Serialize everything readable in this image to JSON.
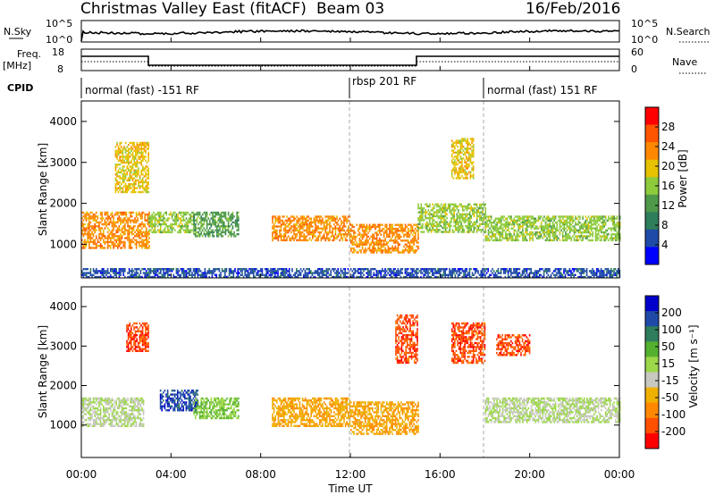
{
  "header": {
    "title": "Christmas Valley East (fitACF)",
    "beam": "Beam 03",
    "date": "16/Feb/2016"
  },
  "summary_panel": {
    "nsky_label": "N.Sky",
    "nsearch_label": "N.Search",
    "nsky_ticks": [
      "10^5",
      "10^0"
    ],
    "nsearch_ticks": [
      "10^5",
      "10^0"
    ],
    "freq_label_1": "Freq.",
    "freq_label_2": "[MHz]",
    "freq_ticks": [
      "18",
      "8"
    ],
    "nave_label": "Nave",
    "nave_ticks": [
      "60",
      "0"
    ],
    "cpid_label": "CPID"
  },
  "cpid_segments": [
    {
      "label": "normal (fast) -151 RF",
      "start_hour": 0,
      "end_hour": 12
    },
    {
      "label": "rbsp 201 RF",
      "start_hour": 12,
      "end_hour": 18
    },
    {
      "label": "normal (fast) 151 RF",
      "start_hour": 18,
      "end_hour": 24
    }
  ],
  "power_panel": {
    "ylabel": "Slant Range [km]",
    "yticks": [
      "1000",
      "2000",
      "3000",
      "4000"
    ],
    "colorbar_label": "Power [dB]",
    "colorbar_ticks": [
      "4",
      "8",
      "12",
      "16",
      "20",
      "24",
      "28"
    ],
    "colors": [
      "#0000ff",
      "#1f4aa8",
      "#2e7d5b",
      "#4f9a4a",
      "#8ecb3c",
      "#e6c200",
      "#ff8800",
      "#ff5500",
      "#ff0000"
    ]
  },
  "velocity_panel": {
    "ylabel": "Slant Range [km]",
    "yticks": [
      "1000",
      "2000",
      "3000",
      "4000"
    ],
    "colorbar_label": "Velocity [m s⁻¹]",
    "colorbar_ticks": [
      "200",
      "100",
      "50",
      "15",
      "-15",
      "-50",
      "-100",
      "-200"
    ],
    "colors": [
      "#0000cc",
      "#1f4aa8",
      "#2e7d5b",
      "#55b030",
      "#9cd84a",
      "#c8c8c0",
      "#f0b000",
      "#ff8800",
      "#ff5000",
      "#ff0000"
    ]
  },
  "xaxis": {
    "ticks": [
      "00:00",
      "04:00",
      "08:00",
      "12:00",
      "16:00",
      "20:00",
      "00:00"
    ],
    "label": "Time UT"
  },
  "chart_data": {
    "type": "heatmap",
    "title": "Christmas Valley East (fitACF) Beam 03 16/Feb/2016",
    "xlabel": "Time UT",
    "ylabel": "Slant Range [km]",
    "xlim": [
      0,
      24
    ],
    "ylim": [
      180,
      4500
    ],
    "grid": false,
    "series": [
      {
        "name": "Power [dB]",
        "clim": [
          0,
          32
        ],
        "bands": [
          {
            "t": [
              0.0,
              3.0
            ],
            "range": [
              900,
              1800
            ],
            "value": 24
          },
          {
            "t": [
              1.5,
              3.0
            ],
            "range": [
              2300,
              3500
            ],
            "value": 20
          },
          {
            "t": [
              3.0,
              5.0
            ],
            "range": [
              1300,
              1800
            ],
            "value": 16
          },
          {
            "t": [
              5.0,
              7.0
            ],
            "range": [
              1200,
              1800
            ],
            "value": 12
          },
          {
            "t": [
              8.5,
              12.0
            ],
            "range": [
              1100,
              1700
            ],
            "value": 24
          },
          {
            "t": [
              12.0,
              15.0
            ],
            "range": [
              800,
              1500
            ],
            "value": 24
          },
          {
            "t": [
              15.0,
              18.0
            ],
            "range": [
              1300,
              2000
            ],
            "value": 16
          },
          {
            "t": [
              16.5,
              17.5
            ],
            "range": [
              2600,
              3600
            ],
            "value": 20
          },
          {
            "t": [
              18.0,
              24.0
            ],
            "range": [
              1100,
              1700
            ],
            "value": 16
          },
          {
            "t": [
              0.0,
              24.0
            ],
            "range": [
              200,
              420
            ],
            "value": 4
          }
        ]
      },
      {
        "name": "Velocity [m s⁻¹]",
        "clim": [
          -250,
          250
        ],
        "bands": [
          {
            "t": [
              0.0,
              2.8
            ],
            "range": [
              1000,
              1700
            ],
            "value": 0
          },
          {
            "t": [
              2.0,
              3.0
            ],
            "range": [
              2900,
              3600
            ],
            "value": -200
          },
          {
            "t": [
              3.5,
              5.2
            ],
            "range": [
              1400,
              1900
            ],
            "value": 200
          },
          {
            "t": [
              5.0,
              7.0
            ],
            "range": [
              1200,
              1700
            ],
            "value": 50
          },
          {
            "t": [
              8.5,
              12.0
            ],
            "range": [
              1000,
              1700
            ],
            "value": -100
          },
          {
            "t": [
              12.0,
              15.0
            ],
            "range": [
              800,
              1600
            ],
            "value": -100
          },
          {
            "t": [
              14.0,
              15.0
            ],
            "range": [
              2600,
              3800
            ],
            "value": -200
          },
          {
            "t": [
              16.5,
              18.0
            ],
            "range": [
              2600,
              3600
            ],
            "value": -200
          },
          {
            "t": [
              18.0,
              24.0
            ],
            "range": [
              1100,
              1700
            ],
            "value": 0
          },
          {
            "t": [
              18.5,
              20.0
            ],
            "range": [
              2800,
              3300
            ],
            "value": -200
          }
        ]
      }
    ]
  }
}
